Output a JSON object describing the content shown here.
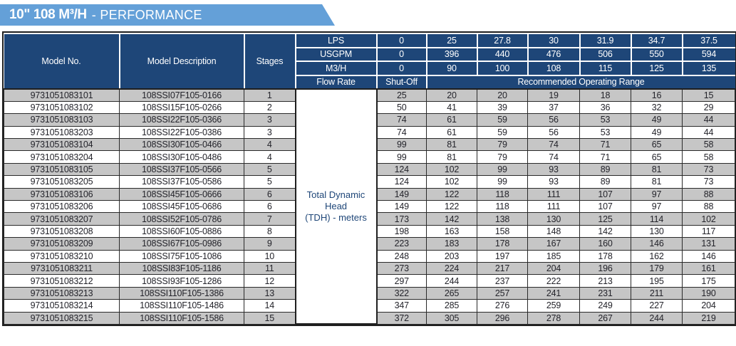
{
  "banner": {
    "title_bold": "10\" 108 M³/H",
    "title_regular": "- PERFORMANCE"
  },
  "colors": {
    "banner_blue": "#64A0D8",
    "header_navy": "#1E4678",
    "row_gray": "#C6C6C6",
    "row_white": "#FFFFFF",
    "border_dark": "#1F1F1F",
    "header_text": "#FFFFFF",
    "data_text": "#24242B"
  },
  "table": {
    "left_headers": [
      "Model No.",
      "Model Description",
      "Stages"
    ],
    "unit_rows": [
      {
        "label": "LPS",
        "values": [
          "0",
          "25",
          "27.8",
          "30",
          "31.9",
          "34.7",
          "37.5"
        ]
      },
      {
        "label": "USGPM",
        "values": [
          "0",
          "396",
          "440",
          "476",
          "506",
          "550",
          "594"
        ]
      },
      {
        "label": "M3/H",
        "values": [
          "0",
          "90",
          "100",
          "108",
          "115",
          "125",
          "135"
        ]
      }
    ],
    "flow_rate_label": "Flow Rate",
    "shut_off_label": "Shut-Off",
    "range_label": "Recommended Operating Range",
    "tdh_line1": "Total Dynamic Head",
    "tdh_line2": "(TDH) - meters",
    "rows": [
      {
        "model": "9731051083101",
        "desc": "108SSI07F105-0166",
        "stages": "1",
        "values": [
          25,
          20,
          20,
          19,
          18,
          16,
          15
        ]
      },
      {
        "model": "9731051083102",
        "desc": "108SSI15F105-0266",
        "stages": "2",
        "values": [
          50,
          41,
          39,
          37,
          36,
          32,
          29
        ]
      },
      {
        "model": "9731051083103",
        "desc": "108SSI22F105-0366",
        "stages": "3",
        "values": [
          74,
          61,
          59,
          56,
          53,
          49,
          44
        ]
      },
      {
        "model": "9731051083203",
        "desc": "108SSI22F105-0386",
        "stages": "3",
        "values": [
          74,
          61,
          59,
          56,
          53,
          49,
          44
        ]
      },
      {
        "model": "9731051083104",
        "desc": "108SSI30F105-0466",
        "stages": "4",
        "values": [
          99,
          81,
          79,
          74,
          71,
          65,
          58
        ]
      },
      {
        "model": "9731051083204",
        "desc": "108SSI30F105-0486",
        "stages": "4",
        "values": [
          99,
          81,
          79,
          74,
          71,
          65,
          58
        ]
      },
      {
        "model": "9731051083105",
        "desc": "108SSI37F105-0566",
        "stages": "5",
        "values": [
          124,
          102,
          99,
          93,
          89,
          81,
          73
        ]
      },
      {
        "model": "9731051083205",
        "desc": "108SSI37F105-0586",
        "stages": "5",
        "values": [
          124,
          102,
          99,
          93,
          89,
          81,
          73
        ]
      },
      {
        "model": "9731051083106",
        "desc": "108SSI45F105-0666",
        "stages": "6",
        "values": [
          149,
          122,
          118,
          111,
          107,
          97,
          88
        ]
      },
      {
        "model": "9731051083206",
        "desc": "108SSI45F105-0686",
        "stages": "6",
        "values": [
          149,
          122,
          118,
          111,
          107,
          97,
          88
        ]
      },
      {
        "model": "9731051083207",
        "desc": "108SSI52F105-0786",
        "stages": "7",
        "values": [
          173,
          142,
          138,
          130,
          125,
          114,
          102
        ]
      },
      {
        "model": "9731051083208",
        "desc": "108SSI60F105-0886",
        "stages": "8",
        "values": [
          198,
          163,
          158,
          148,
          142,
          130,
          117
        ]
      },
      {
        "model": "9731051083209",
        "desc": "108SSI67F105-0986",
        "stages": "9",
        "values": [
          223,
          183,
          178,
          167,
          160,
          146,
          131
        ]
      },
      {
        "model": "9731051083210",
        "desc": "108SSI75F105-1086",
        "stages": "10",
        "values": [
          248,
          203,
          197,
          185,
          178,
          162,
          146
        ]
      },
      {
        "model": "9731051083211",
        "desc": "108SSI83F105-1186",
        "stages": "11",
        "values": [
          273,
          224,
          217,
          204,
          196,
          179,
          161
        ]
      },
      {
        "model": "9731051083212",
        "desc": "108SSI93F105-1286",
        "stages": "12",
        "values": [
          297,
          244,
          237,
          222,
          213,
          195,
          175
        ]
      },
      {
        "model": "9731051083213",
        "desc": "108SSI110F105-1386",
        "stages": "13",
        "values": [
          322,
          265,
          257,
          241,
          231,
          211,
          190
        ]
      },
      {
        "model": "9731051083214",
        "desc": "108SSI110F105-1486",
        "stages": "14",
        "values": [
          347,
          285,
          276,
          259,
          249,
          227,
          204
        ]
      },
      {
        "model": "9731051083215",
        "desc": "108SSI110F105-1586",
        "stages": "15",
        "values": [
          372,
          305,
          296,
          278,
          267,
          244,
          219
        ]
      }
    ]
  }
}
